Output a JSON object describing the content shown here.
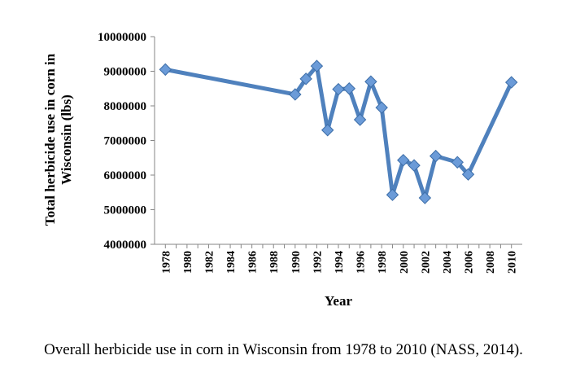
{
  "chart_data": {
    "type": "line",
    "xlabel": "Year",
    "ylabel": "Total herbicide use in corn in Wisconsin (lbs)",
    "ylim": [
      4000000,
      10000000
    ],
    "xlim": [
      1977,
      2011
    ],
    "y_ticks": [
      "4000000",
      "5000000",
      "6000000",
      "7000000",
      "8000000",
      "9000000",
      "10000000"
    ],
    "x_ticks": [
      "1978",
      "1980",
      "1982",
      "1984",
      "1986",
      "1988",
      "1990",
      "1992",
      "1994",
      "1996",
      "1998",
      "2000",
      "2002",
      "2004",
      "2006",
      "2008",
      "2010"
    ],
    "grid": false,
    "legend": "none",
    "line_color": "#4f81bd",
    "marker_color": "#6b9bd8",
    "series": [
      {
        "x": [
          1978,
          1990,
          1991,
          1992,
          1993,
          1994,
          1995,
          1996,
          1997,
          1998,
          1999,
          2000,
          2001,
          2002,
          2003,
          2005,
          2006,
          2010
        ],
        "y": [
          9050000,
          8330000,
          8780000,
          9150000,
          7300000,
          8480000,
          8500000,
          7600000,
          8700000,
          7950000,
          5430000,
          6430000,
          6280000,
          5340000,
          6550000,
          6370000,
          6020000,
          8680000
        ]
      }
    ]
  },
  "caption": "Overall herbicide use in corn in Wisconsin from 1978 to 2010 (NASS, 2014)."
}
